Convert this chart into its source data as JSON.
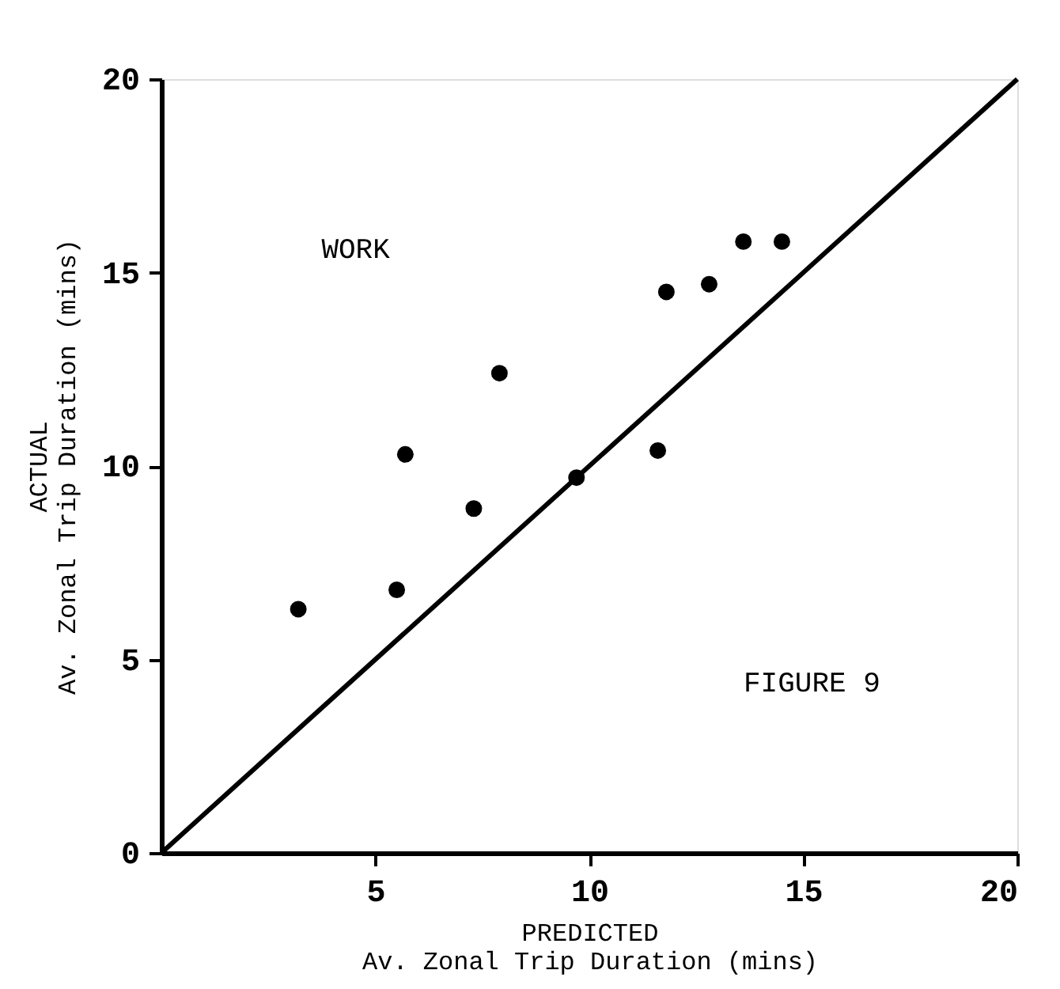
{
  "chart_data": {
    "type": "scatter",
    "xlabel": "PREDICTED\nAv. Zonal Trip Duration (mins)",
    "ylabel": "ACTUAL\nAv. Zonal Trip Duration (mins)",
    "xlim": [
      0,
      20
    ],
    "ylim": [
      0,
      20
    ],
    "xticks": [
      5,
      10,
      15,
      20
    ],
    "yticks": [
      0,
      5,
      10,
      15,
      20
    ],
    "grid": false,
    "legend": false,
    "marker": "circle",
    "annotations": [
      "WORK",
      "FIGURE 9"
    ],
    "series": [
      {
        "type": "scatter",
        "color": "#000000",
        "x": [
          3.2,
          5.5,
          5.7,
          7.3,
          7.9,
          9.7,
          11.6,
          11.8,
          12.8,
          13.6,
          14.5
        ],
        "values": [
          6.3,
          6.8,
          10.3,
          8.9,
          12.4,
          9.7,
          10.4,
          14.5,
          14.7,
          15.8,
          15.8
        ]
      },
      {
        "type": "line",
        "color": "#000000",
        "line_style": "solid",
        "marker": "none",
        "x": [
          0,
          20
        ],
        "values": [
          0,
          20
        ]
      }
    ]
  }
}
